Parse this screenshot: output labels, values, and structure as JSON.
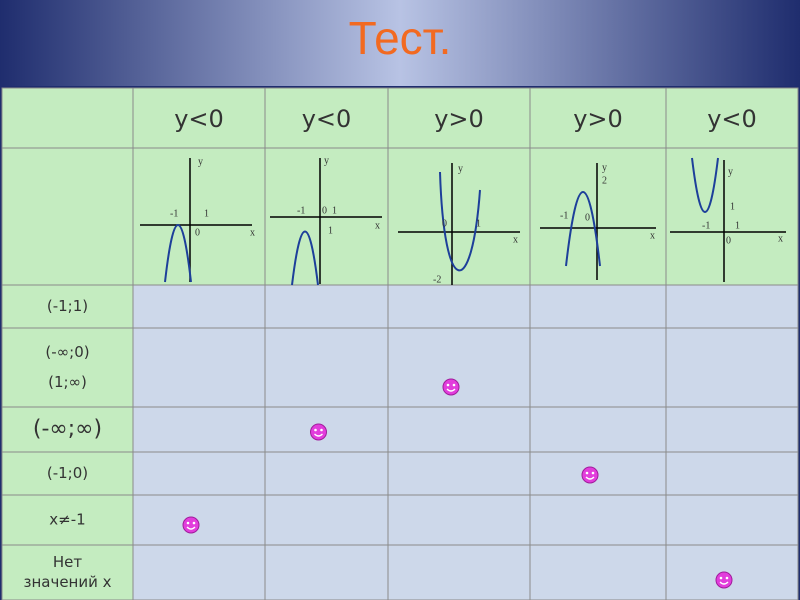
{
  "header": {
    "title": "Тест."
  },
  "table": {
    "columns": [
      "y<0",
      "y<0",
      "y>0",
      "y>0",
      "y<0"
    ],
    "graphs": [
      {
        "labels": [
          "y",
          "-1",
          "1",
          "0",
          "x"
        ]
      },
      {
        "labels": [
          "y",
          "-1",
          "0",
          "1",
          "1",
          "x"
        ]
      },
      {
        "labels": [
          "y",
          "0",
          "1",
          "x",
          "-2"
        ]
      },
      {
        "labels": [
          "y",
          "2",
          "-1",
          "0",
          "x"
        ]
      },
      {
        "labels": [
          "y",
          "1",
          "-1",
          "1",
          "0",
          "x"
        ]
      }
    ],
    "rows": [
      {
        "label": [
          "(-1;1)"
        ],
        "mark_column": null
      },
      {
        "label": [
          "(-∞;0)",
          "(1;∞)"
        ],
        "mark_column": 3
      },
      {
        "label": [
          "(-∞;∞)"
        ],
        "mark_column": 2
      },
      {
        "label": [
          "(-1;0)"
        ],
        "mark_column": 4
      },
      {
        "label": [
          "x≠-1"
        ],
        "mark_column": 1
      },
      {
        "label": [
          "Нет",
          "значений х"
        ],
        "mark_column": 5
      }
    ]
  }
}
